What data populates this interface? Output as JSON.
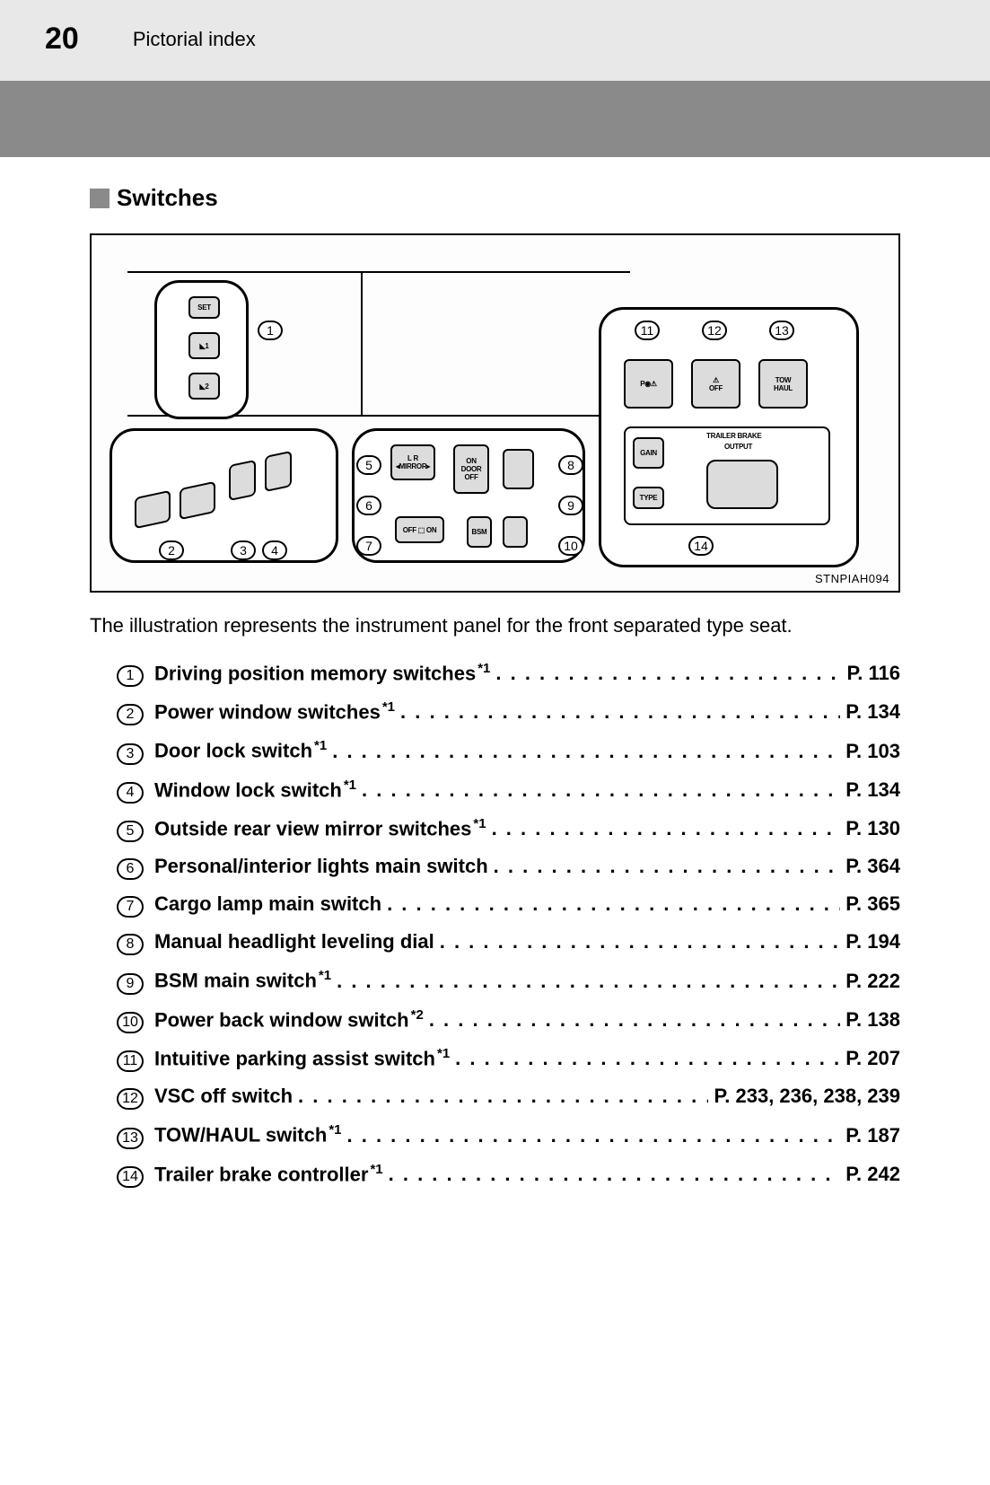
{
  "header": {
    "page_number": "20",
    "section_title": "Pictorial index"
  },
  "heading": "Switches",
  "figure": {
    "ref_id": "STNPIAH094",
    "callouts": [
      "1",
      "2",
      "3",
      "4",
      "5",
      "6",
      "7",
      "8",
      "9",
      "10",
      "11",
      "12",
      "13",
      "14"
    ],
    "right_panel": {
      "btn11_icon": "P◉⚠",
      "btn12_top_icon": "⚠",
      "btn12_label": "OFF",
      "btn13_line1": "TOW",
      "btn13_line2": "HAUL",
      "trailer_label1": "TRAILER BRAKE",
      "trailer_label2": "OUTPUT",
      "gain_label": "GAIN",
      "type_label": "TYPE"
    },
    "center_panel": {
      "mirror_L": "L",
      "mirror_R": "R",
      "mirror_label": "◂MIRROR▸",
      "door_on": "ON",
      "door_label": "DOOR",
      "door_off": "OFF",
      "cargo_off": "OFF",
      "cargo_on": "ON",
      "cargo_label": "DOOR",
      "bsm_label": "BSM"
    },
    "left_top_panel": {
      "set_label": "SET",
      "pos1": "◣1",
      "pos2": "◣2"
    }
  },
  "caption": "The illustration represents the instrument panel for the front separated type seat.",
  "items": [
    {
      "num": "1",
      "label": "Driving position memory switches",
      "footnote": "*1",
      "page": "P. 116"
    },
    {
      "num": "2",
      "label": "Power window switches",
      "footnote": "*1",
      "page": "P. 134"
    },
    {
      "num": "3",
      "label": "Door lock switch",
      "footnote": "*1",
      "page": "P. 103"
    },
    {
      "num": "4",
      "label": "Window lock switch",
      "footnote": "*1",
      "page": "P. 134"
    },
    {
      "num": "5",
      "label": "Outside rear view mirror switches",
      "footnote": "*1",
      "page": "P. 130"
    },
    {
      "num": "6",
      "label": "Personal/interior lights main switch",
      "footnote": "",
      "page": "P. 364"
    },
    {
      "num": "7",
      "label": "Cargo lamp main switch",
      "footnote": "",
      "page": "P. 365"
    },
    {
      "num": "8",
      "label": "Manual headlight leveling dial",
      "footnote": "",
      "page": "P. 194"
    },
    {
      "num": "9",
      "label": "BSM main switch",
      "footnote": "*1",
      "page": "P. 222"
    },
    {
      "num": "10",
      "label": "Power back window switch",
      "footnote": "*2",
      "page": "P. 138"
    },
    {
      "num": "11",
      "label": "Intuitive parking assist switch",
      "footnote": "*1",
      "page": "P. 207"
    },
    {
      "num": "12",
      "label": "VSC off switch",
      "footnote": "",
      "page": "P. 233, 236, 238, 239"
    },
    {
      "num": "13",
      "label": "TOW/HAUL switch",
      "footnote": "*1",
      "page": "P. 187"
    },
    {
      "num": "14",
      "label": "Trailer brake controller",
      "footnote": "*1",
      "page": "P. 242"
    }
  ]
}
